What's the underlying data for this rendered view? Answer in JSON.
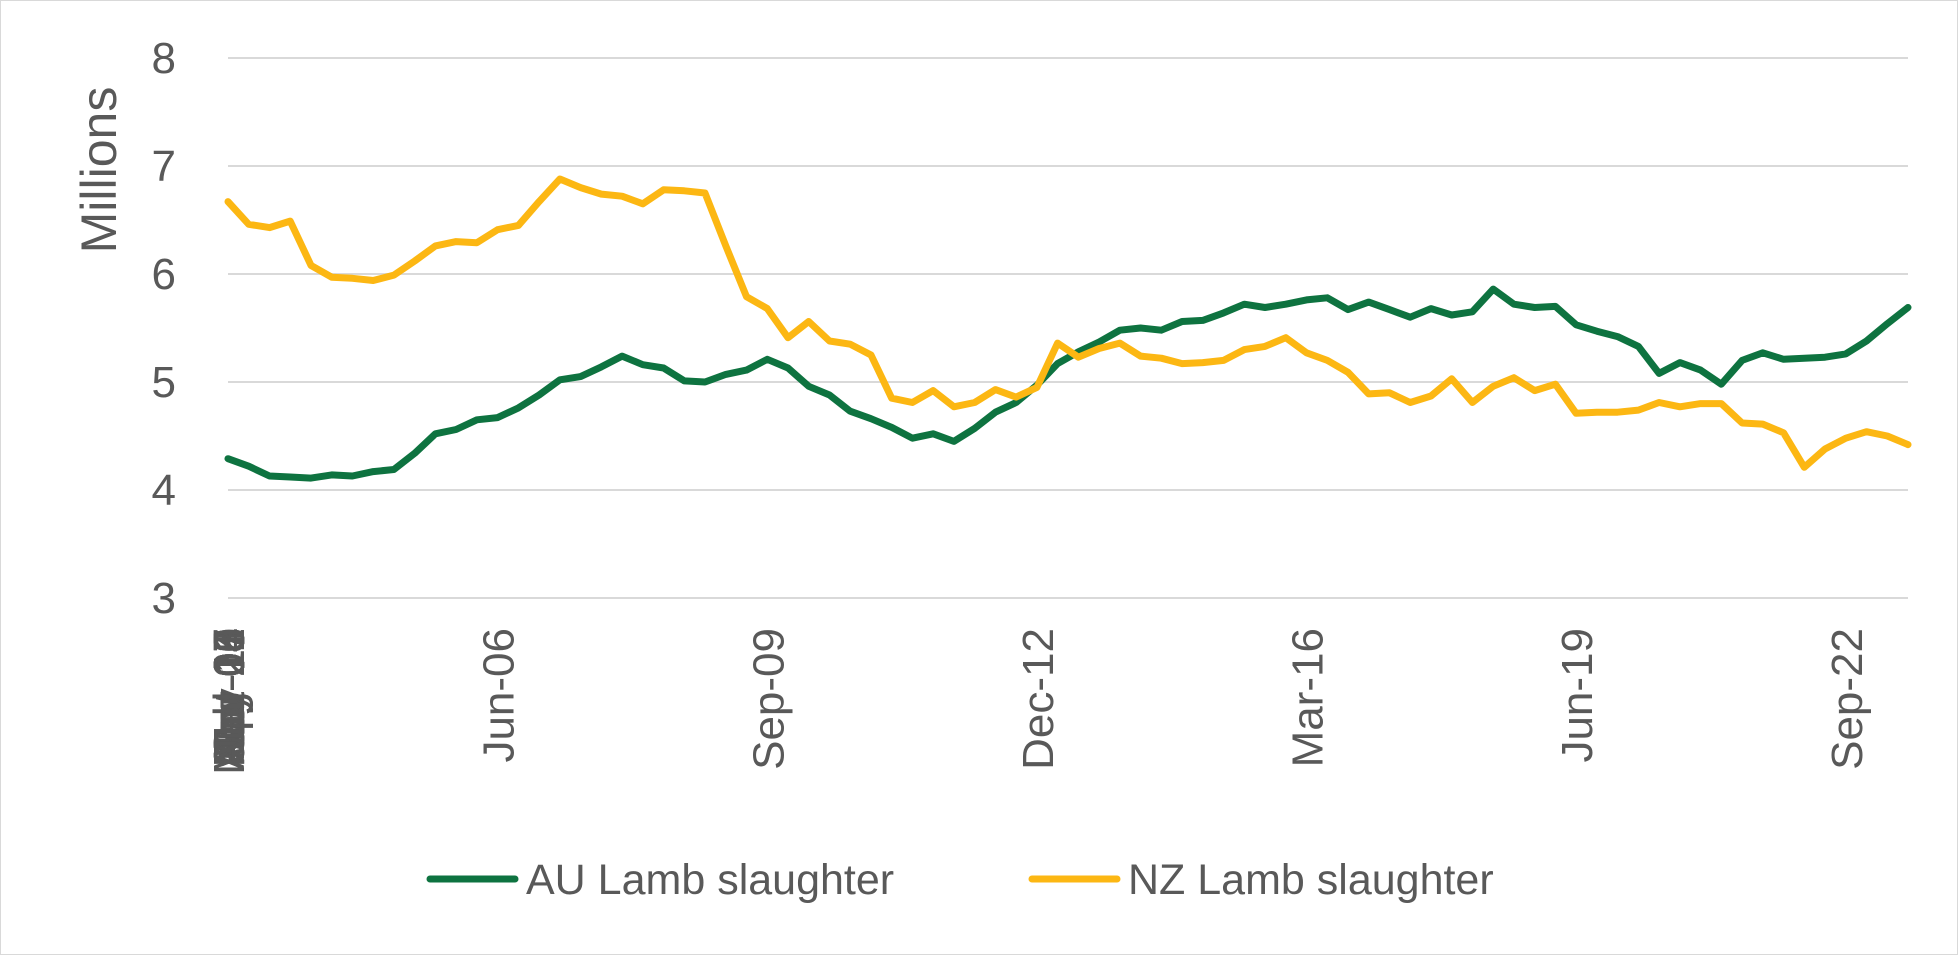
{
  "chart_data": {
    "type": "line",
    "title": "",
    "xlabel": "",
    "ylabel": "Millions",
    "ylim": [
      3,
      8
    ],
    "yticks": [
      "3",
      "4",
      "5",
      "6",
      "7",
      "8"
    ],
    "grid": true,
    "legend_position": "bottom",
    "x_tick_labels": [
      "Mar-03",
      "Apr-04",
      "May-05",
      "Jun-06",
      "Jul-07",
      "Aug-08",
      "Sep-09",
      "Oct-10",
      "Nov-11",
      "Dec-12",
      "Jan-14",
      "Feb-15",
      "Mar-16",
      "Apr-17",
      "May-18",
      "Jun-19",
      "Jul-20",
      "Aug-21",
      "Sep-22"
    ],
    "x": [
      "Mar-03",
      "Jun-03",
      "Sep-03",
      "Dec-03",
      "Mar-04",
      "Jun-04",
      "Sep-04",
      "Dec-04",
      "Mar-05",
      "Jun-05",
      "Sep-05",
      "Dec-05",
      "Mar-06",
      "Jun-06",
      "Sep-06",
      "Dec-06",
      "Mar-07",
      "Jun-07",
      "Sep-07",
      "Dec-07",
      "Mar-08",
      "Jun-08",
      "Sep-08",
      "Dec-08",
      "Mar-09",
      "Jun-09",
      "Sep-09",
      "Dec-09",
      "Mar-10",
      "Jun-10",
      "Sep-10",
      "Dec-10",
      "Mar-11",
      "Jun-11",
      "Sep-11",
      "Dec-11",
      "Mar-12",
      "Jun-12",
      "Sep-12",
      "Dec-12",
      "Mar-13",
      "Jun-13",
      "Sep-13",
      "Dec-13",
      "Mar-14",
      "Jun-14",
      "Sep-14",
      "Dec-14",
      "Mar-15",
      "Jun-15",
      "Sep-15",
      "Dec-15",
      "Mar-16",
      "Jun-16",
      "Sep-16",
      "Dec-16",
      "Mar-17",
      "Jun-17",
      "Sep-17",
      "Dec-17",
      "Mar-18",
      "Jun-18",
      "Sep-18",
      "Dec-18",
      "Mar-19",
      "Jun-19",
      "Sep-19",
      "Dec-19",
      "Mar-20",
      "Jun-20",
      "Sep-20",
      "Dec-20",
      "Mar-21",
      "Jun-21",
      "Sep-21",
      "Dec-21",
      "Mar-22",
      "Jun-22",
      "Sep-22",
      "Dec-22",
      "Mar-23",
      "Jun-23"
    ],
    "series": [
      {
        "name": "AU Lamb slaughter",
        "color": "#0e7340",
        "values": [
          4.29,
          4.22,
          4.13,
          4.12,
          4.11,
          4.14,
          4.13,
          4.17,
          4.19,
          4.34,
          4.52,
          4.56,
          4.65,
          4.67,
          4.76,
          4.88,
          5.02,
          5.05,
          5.14,
          5.24,
          5.16,
          5.13,
          5.01,
          5.0,
          5.07,
          5.11,
          5.21,
          5.13,
          4.96,
          4.88,
          4.73,
          4.66,
          4.58,
          4.48,
          4.52,
          4.45,
          4.57,
          4.72,
          4.81,
          4.97,
          5.17,
          5.28,
          5.37,
          5.48,
          5.5,
          5.48,
          5.56,
          5.57,
          5.64,
          5.72,
          5.69,
          5.72,
          5.76,
          5.78,
          5.67,
          5.74,
          5.67,
          5.6,
          5.68,
          5.62,
          5.65,
          5.86,
          5.72,
          5.69,
          5.7,
          5.53,
          5.47,
          5.42,
          5.33,
          5.08,
          5.18,
          5.11,
          4.98,
          5.2,
          5.27,
          5.21,
          5.22,
          5.23,
          5.26,
          5.38,
          5.54,
          5.69
        ]
      },
      {
        "name": "NZ Lamb slaughter",
        "color": "#fcb713",
        "values": [
          6.67,
          6.46,
          6.43,
          6.49,
          6.08,
          5.97,
          5.96,
          5.94,
          5.99,
          6.12,
          6.26,
          6.3,
          6.29,
          6.41,
          6.45,
          6.67,
          6.88,
          6.8,
          6.74,
          6.72,
          6.65,
          6.78,
          6.77,
          6.75,
          6.26,
          5.79,
          5.68,
          5.41,
          5.56,
          5.38,
          5.35,
          5.25,
          4.85,
          4.81,
          4.92,
          4.77,
          4.81,
          4.93,
          4.86,
          4.95,
          5.36,
          5.23,
          5.31,
          5.36,
          5.24,
          5.22,
          5.17,
          5.18,
          5.2,
          5.3,
          5.33,
          5.41,
          5.27,
          5.2,
          5.09,
          4.89,
          4.9,
          4.81,
          4.87,
          5.03,
          4.81,
          4.96,
          5.04,
          4.92,
          4.98,
          4.71,
          4.72,
          4.72,
          4.74,
          4.81,
          4.77,
          4.8,
          4.8,
          4.62,
          4.61,
          4.53,
          4.21,
          4.38,
          4.48,
          4.54,
          4.5,
          4.42
        ]
      }
    ]
  }
}
